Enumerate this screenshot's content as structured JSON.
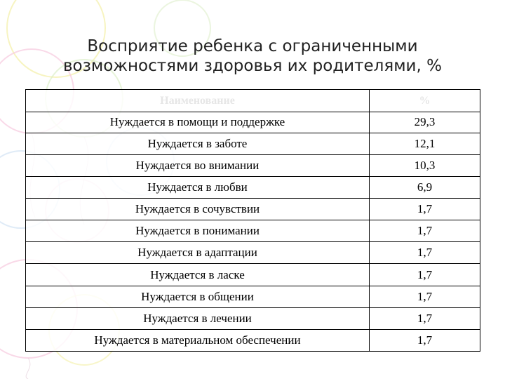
{
  "slide": {
    "title_line1": "Восприятие ребенка с ограниченными",
    "title_line2": "возможностями здоровья их родителями, %"
  },
  "table": {
    "headers": {
      "name": "Наименование",
      "value": "%"
    },
    "rows": [
      {
        "name": "Нуждается в помощи и поддержке",
        "value": "29,3"
      },
      {
        "name": "Нуждается в заботе",
        "value": "12,1"
      },
      {
        "name": "Нуждается во внимании",
        "value": "10,3"
      },
      {
        "name": "Нуждается в любви",
        "value": "6,9"
      },
      {
        "name": "Нуждается в сочувствии",
        "value": "1,7"
      },
      {
        "name": "Нуждается в понимании",
        "value": "1,7"
      },
      {
        "name": "Нуждается в адаптации",
        "value": "1,7"
      },
      {
        "name": "Нуждается в ласке",
        "value": "1,7"
      },
      {
        "name": "Нуждается в общении",
        "value": "1,7"
      },
      {
        "name": "Нуждается в лечении",
        "value": "1,7"
      },
      {
        "name": "Нуждается в материальном обеспечении",
        "value": "1,7"
      }
    ]
  },
  "colors": {
    "balloon_pink": "#f6c9de",
    "balloon_yellow": "#f4f0a6",
    "balloon_blue": "#c9ddf2",
    "balloon_green": "#d7ecc0"
  }
}
